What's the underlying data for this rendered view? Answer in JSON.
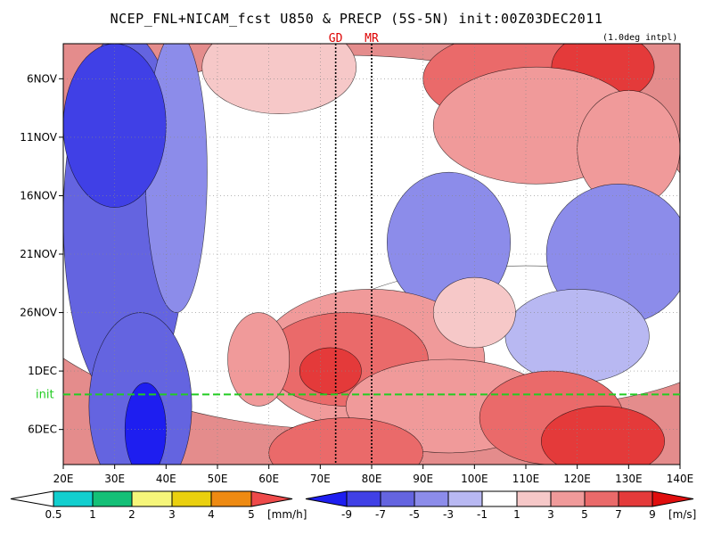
{
  "title": "NCEP_FNL+NICAM_fcst U850 & PRECP (5S-5N) init:00Z03DEC2011",
  "note": "(1.0deg intpl)",
  "chart_data": {
    "type": "heatmap",
    "x_label_values": [
      "20E",
      "30E",
      "40E",
      "50E",
      "60E",
      "70E",
      "80E",
      "90E",
      "100E",
      "110E",
      "120E",
      "130E",
      "140E"
    ],
    "x_range": [
      20,
      140
    ],
    "y_labels": [
      {
        "label": "6NOV",
        "day": 6
      },
      {
        "label": "11NOV",
        "day": 11
      },
      {
        "label": "16NOV",
        "day": 16
      },
      {
        "label": "21NOV",
        "day": 21
      },
      {
        "label": "26NOV",
        "day": 26
      },
      {
        "label": "1DEC",
        "day": 31
      },
      {
        "label": "6DEC",
        "day": 36
      }
    ],
    "time_range": [
      "3NOV2011",
      "9DEC2011"
    ],
    "init_line": {
      "label": "init",
      "date": "3DEC2011",
      "color": "#22cc22"
    },
    "markers": [
      {
        "label": "GD",
        "lon": 73
      },
      {
        "label": "MR",
        "lon": 80
      }
    ],
    "u850_colorbar": {
      "unit": "[m/s]",
      "ticks": [
        "-9",
        "-7",
        "-5",
        "-3",
        "-1",
        "1",
        "3",
        "5",
        "7",
        "9"
      ],
      "colors": [
        "#1e1ef0",
        "#4040e6",
        "#6464e0",
        "#8c8cea",
        "#b8b8f2",
        "#ffffff",
        "#f6c8c8",
        "#f09a9a",
        "#ea6a6a",
        "#e43a3a",
        "#e00e0e"
      ]
    },
    "precip_colorbar": {
      "unit": "[mm/h]",
      "ticks": [
        "0.5",
        "1",
        "2",
        "3",
        "4",
        "5"
      ],
      "colors": [
        "#ffffff",
        "#12cfcf",
        "#14c077",
        "#f6f67a",
        "#ead00e",
        "#ee8a12",
        "#ee4a4a"
      ]
    },
    "notes": "Longitude-time Hovmoller of 850hPa zonal wind (shaded) averaged 5S-5N; westerlies (red) over 55E-100E late Nov propagate eastward to 110E-135E in early Dec; easterlies (blue) dominate 20E-50E."
  }
}
